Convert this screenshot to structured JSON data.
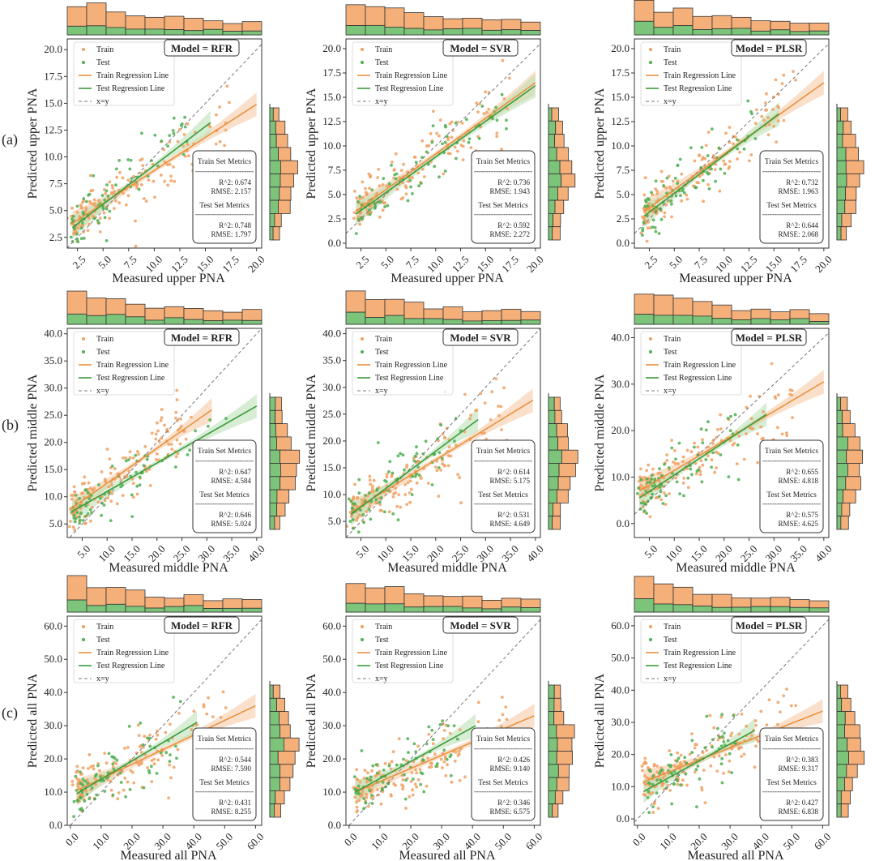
{
  "colors": {
    "train": "#f0a060",
    "test": "#4caf50",
    "train_line": "#e8913e",
    "test_line": "#3c9a3c",
    "train_band": "#f6c6a0",
    "test_band": "#b7e0b3",
    "identity": "#777777",
    "hist_train": "#f5b07a",
    "hist_test": "#7cc47a"
  },
  "labels": {
    "legend_train": "Train",
    "legend_test": "Test",
    "legend_train_line": "Train Regression Line",
    "legend_test_line": "Test Regression Line",
    "legend_identity": "x=y",
    "train_metrics_title": "Train Set Metrics",
    "test_metrics_title": "Test Set Metrics",
    "metric_sep": "------------------------",
    "r2_prefix": "R^2: ",
    "rmse_prefix": "RMSE: "
  },
  "rows": [
    {
      "label": "(a)",
      "xlabel": "Measured upper PNA",
      "ylabel": "Predicted upper PNA"
    },
    {
      "label": "(b)",
      "xlabel": "Measured middle PNA",
      "ylabel": "Predicted middle PNA"
    },
    {
      "label": "(c)",
      "xlabel": "Measured all PNA",
      "ylabel": "Predicted all PNA"
    }
  ],
  "chart_data": [
    {
      "type": "scatter",
      "row": 0,
      "model": "Model = RFR",
      "xticks": [
        "2.5",
        "5.0",
        "7.5",
        "10.0",
        "12.5",
        "15.0",
        "17.5",
        "20.0"
      ],
      "yticks": [
        "2.5",
        "5.0",
        "7.5",
        "10.0",
        "12.5",
        "15.0",
        "17.5",
        "20.0"
      ],
      "xlim": [
        1.5,
        20.5
      ],
      "ylim": [
        1.5,
        21.0
      ],
      "train_line": {
        "x": [
          2.0,
          20.0
        ],
        "y": [
          3.8,
          14.9
        ]
      },
      "test_line": {
        "x": [
          2.0,
          15.5
        ],
        "y": [
          3.4,
          13.2
        ]
      },
      "metrics": {
        "train_r2": "0.674",
        "train_rmse": "2.157",
        "test_r2": "0.748",
        "test_rmse": "1.797"
      }
    },
    {
      "type": "scatter",
      "row": 0,
      "model": "Model = SVR",
      "xticks": [
        "2.5",
        "5.0",
        "7.5",
        "10.0",
        "12.5",
        "15.0",
        "17.5",
        "20.0"
      ],
      "yticks": [
        "0.0",
        "2.5",
        "5.0",
        "7.5",
        "10.0",
        "12.5",
        "15.0",
        "17.5",
        "20.0"
      ],
      "xlim": [
        1.0,
        20.5
      ],
      "ylim": [
        -0.5,
        21.0
      ],
      "train_line": {
        "x": [
          2.0,
          20.0
        ],
        "y": [
          3.3,
          16.5
        ]
      },
      "test_line": {
        "x": [
          2.0,
          20.0
        ],
        "y": [
          3.0,
          16.2
        ]
      },
      "metrics": {
        "train_r2": "0.736",
        "train_rmse": "1.943",
        "test_r2": "0.592",
        "test_rmse": "2.272"
      }
    },
    {
      "type": "scatter",
      "row": 0,
      "model": "Model = PLSR",
      "xticks": [
        "2.5",
        "5.0",
        "7.5",
        "10.0",
        "12.5",
        "15.0",
        "17.5",
        "20.0"
      ],
      "yticks": [
        "0.0",
        "2.5",
        "5.0",
        "7.5",
        "10.0",
        "12.5",
        "15.0",
        "17.5",
        "20.0"
      ],
      "xlim": [
        1.0,
        20.5
      ],
      "ylim": [
        -0.5,
        21.0
      ],
      "train_line": {
        "x": [
          2.0,
          20.0
        ],
        "y": [
          3.3,
          16.5
        ]
      },
      "test_line": {
        "x": [
          2.0,
          15.5
        ],
        "y": [
          2.8,
          13.3
        ]
      },
      "metrics": {
        "train_r2": "0.732",
        "train_rmse": "1.963",
        "test_r2": "0.644",
        "test_rmse": "2.068"
      }
    },
    {
      "type": "scatter",
      "row": 1,
      "model": "Model = RFR",
      "xticks": [
        "5.0",
        "10.0",
        "15.0",
        "20.0",
        "25.0",
        "30.0",
        "35.0",
        "40.0"
      ],
      "yticks": [
        "5.0",
        "10.0",
        "15.0",
        "20.0",
        "25.0",
        "30.0",
        "35.0",
        "40.0"
      ],
      "xlim": [
        2.0,
        41.0
      ],
      "ylim": [
        2.5,
        41.0
      ],
      "train_line": {
        "x": [
          3.0,
          31.0
        ],
        "y": [
          8.0,
          26.0
        ]
      },
      "test_line": {
        "x": [
          3.0,
          40.0
        ],
        "y": [
          7.3,
          26.7
        ]
      },
      "metrics": {
        "train_r2": "0.647",
        "train_rmse": "4.584",
        "test_r2": "0.646",
        "test_rmse": "5.024"
      }
    },
    {
      "type": "scatter",
      "row": 1,
      "model": "Model = SVR",
      "xticks": [
        "5.0",
        "10.0",
        "15.0",
        "20.0",
        "25.0",
        "30.0",
        "35.0",
        "40.0"
      ],
      "yticks": [
        "5.0",
        "10.0",
        "15.0",
        "20.0",
        "25.0",
        "30.0",
        "35.0",
        "40.0"
      ],
      "xlim": [
        2.0,
        41.0
      ],
      "ylim": [
        2.0,
        41.0
      ],
      "train_line": {
        "x": [
          3.0,
          39.5
        ],
        "y": [
          6.8,
          27.6
        ]
      },
      "test_line": {
        "x": [
          3.0,
          28.5
        ],
        "y": [
          6.3,
          24.0
        ]
      },
      "metrics": {
        "train_r2": "0.614",
        "train_rmse": "5.175",
        "test_r2": "0.531",
        "test_rmse": "4.649"
      }
    },
    {
      "type": "scatter",
      "row": 1,
      "model": "Model = PLSR",
      "xticks": [
        "5.0",
        "10.0",
        "15.0",
        "20.0",
        "25.0",
        "30.0",
        "35.0",
        "40.0"
      ],
      "yticks": [
        "0.0",
        "10.0",
        "20.0",
        "30.0",
        "40.0"
      ],
      "xlim": [
        2.0,
        41.0
      ],
      "ylim": [
        -3.0,
        42.0
      ],
      "train_line": {
        "x": [
          3.0,
          40.0
        ],
        "y": [
          7.0,
          30.5
        ]
      },
      "test_line": {
        "x": [
          3.0,
          28.5
        ],
        "y": [
          5.5,
          23.5
        ]
      },
      "metrics": {
        "train_r2": "0.655",
        "train_rmse": "4.818",
        "test_r2": "0.575",
        "test_rmse": "4.625"
      }
    },
    {
      "type": "scatter",
      "row": 2,
      "model": "Model = RFR",
      "xticks": [
        "0.0",
        "10.0",
        "20.0",
        "30.0",
        "40.0",
        "50.0",
        "60.0"
      ],
      "yticks": [
        "0.0",
        "10.0",
        "20.0",
        "30.0",
        "40.0",
        "50.0",
        "60.0"
      ],
      "xlim": [
        -1.0,
        62.0
      ],
      "ylim": [
        0.0,
        63.0
      ],
      "train_line": {
        "x": [
          2.0,
          60.0
        ],
        "y": [
          10.5,
          36.0
        ]
      },
      "test_line": {
        "x": [
          2.0,
          41.0
        ],
        "y": [
          9.5,
          31.0
        ]
      },
      "metrics": {
        "train_r2": "0.544",
        "train_rmse": "7.590",
        "test_r2": "0.431",
        "test_rmse": "8.255"
      }
    },
    {
      "type": "scatter",
      "row": 2,
      "model": "Model = SVR",
      "xticks": [
        "0.0",
        "10.0",
        "20.0",
        "30.0",
        "40.0",
        "50.0",
        "60.0"
      ],
      "yticks": [
        "0.0",
        "10.0",
        "20.0",
        "30.0",
        "40.0",
        "50.0",
        "60.0"
      ],
      "xlim": [
        -1.0,
        62.0
      ],
      "ylim": [
        0.0,
        63.0
      ],
      "train_line": {
        "x": [
          2.0,
          60.0
        ],
        "y": [
          10.0,
          33.0
        ]
      },
      "test_line": {
        "x": [
          2.0,
          41.0
        ],
        "y": [
          10.0,
          30.0
        ]
      },
      "metrics": {
        "train_r2": "0.426",
        "train_rmse": "9.140",
        "test_r2": "0.346",
        "test_rmse": "6.575"
      }
    },
    {
      "type": "scatter",
      "row": 2,
      "model": "Model = PLSR",
      "xticks": [
        "0.0",
        "10.0",
        "20.0",
        "30.0",
        "40.0",
        "50.0",
        "60.0"
      ],
      "yticks": [
        "0.0",
        "10.0",
        "20.0",
        "30.0",
        "40.0",
        "50.0",
        "60.0"
      ],
      "xlim": [
        -1.0,
        62.0
      ],
      "ylim": [
        -2.0,
        63.0
      ],
      "train_line": {
        "x": [
          2.0,
          60.0
        ],
        "y": [
          11.5,
          33.5
        ]
      },
      "test_line": {
        "x": [
          2.0,
          38.0
        ],
        "y": [
          8.5,
          27.5
        ]
      },
      "metrics": {
        "train_r2": "0.383",
        "train_rmse": "9.317",
        "test_r2": "0.427",
        "test_rmse": "6.838"
      }
    }
  ]
}
